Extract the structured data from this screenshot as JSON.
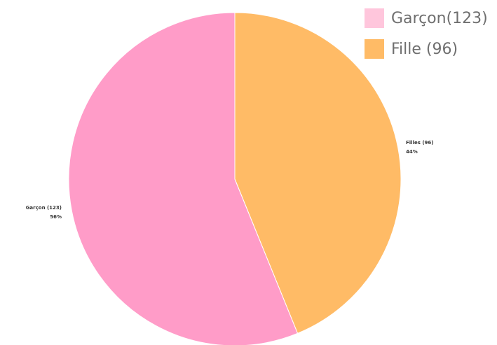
{
  "chart_data": {
    "type": "pie",
    "categories": [
      "Garçon",
      "Filles"
    ],
    "values": [
      123,
      96
    ],
    "percents": [
      "56%",
      "44%"
    ],
    "slice_labels": [
      "Garçon (123)",
      "Filles (96)"
    ],
    "colors": [
      "#ff9cc8",
      "#ffbb66"
    ],
    "legend": {
      "placement": "top-right",
      "entries": [
        {
          "label": "Garçon(123)",
          "color": "#ffc6dc"
        },
        {
          "label": "Fille (96)",
          "color": "#ffbb66"
        }
      ]
    }
  }
}
